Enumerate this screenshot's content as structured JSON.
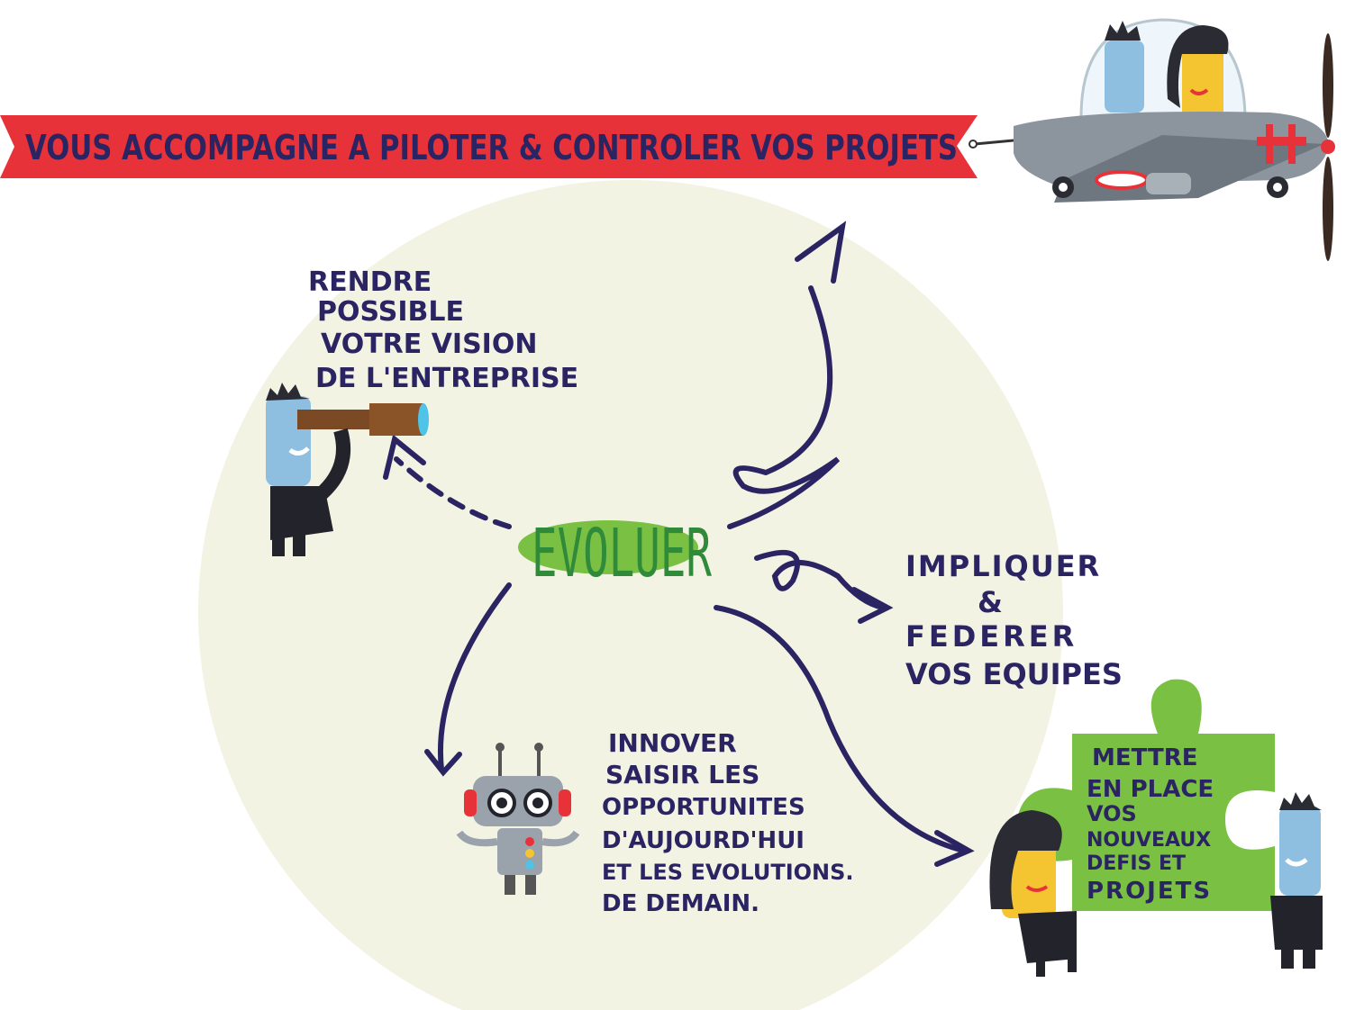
{
  "banner": {
    "text": "VOUS ACCOMPAGNE A PILOTER & CONTROLER VOS PROJETS"
  },
  "center": {
    "label": "EVOLUER"
  },
  "vision": {
    "lines": [
      "RENDRE",
      "POSSIBLE",
      "VOTRE VISION",
      "DE L'ENTREPRISE"
    ]
  },
  "federer": {
    "lines": [
      "IMPLIQUER",
      "&",
      "FEDERER",
      "VOS EQUIPES"
    ]
  },
  "innover": {
    "lines": [
      "INNOVER",
      "SAISIR LES",
      "OPPORTUNITES",
      "D'AUJOURD'HUI",
      "ET LES EVOLUTIONS.",
      "DE DEMAIN."
    ]
  },
  "puzzle": {
    "lines": [
      "METTRE",
      "EN PLACE",
      "VOS",
      "NOUVEAUX",
      "DEFIS ET",
      "PROJETS"
    ]
  },
  "colors": {
    "banner_red": "#e8323a",
    "ink": "#2b2462",
    "circle_bg": "#f3f3e4",
    "green_pill": "#7ac143",
    "puzzle_green": "#7ac143",
    "plane_grey": "#8c959e"
  }
}
